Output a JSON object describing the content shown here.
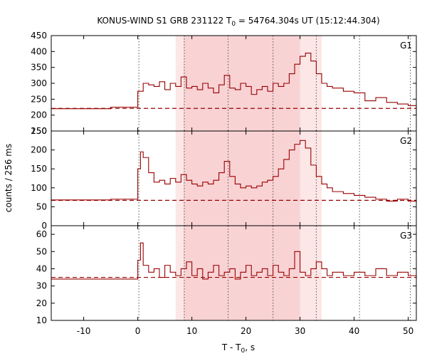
{
  "chart_data": {
    "type": "line",
    "title": "KONUS-WIND S1 GRB 231122 T",
    "title_sub": "0",
    "title_rest": " = 54764.304s UT (15:12:44.304)",
    "xlabel": "T - T",
    "xlabel_sub": "0",
    "xlabel_rest": ", s",
    "ylabel": "counts / 256 ms",
    "xlim": [
      -16,
      51.5
    ],
    "xticks": [
      -10,
      0,
      10,
      20,
      30,
      40,
      50
    ],
    "colors": {
      "line": "#990000",
      "band_light": "#fde6e6",
      "band_dark": "#f9d2d4"
    },
    "shading": [
      {
        "x0": 7,
        "x1": 34,
        "shade": "light"
      },
      {
        "x0": 8.5,
        "x1": 30,
        "shade": "dark"
      }
    ],
    "vlines": [
      0.2,
      8.6,
      16.7,
      25,
      33,
      41,
      50.4
    ],
    "panels": [
      {
        "name": "G1",
        "ylim": [
          150,
          450
        ],
        "yticks": [
          150,
          200,
          250,
          300,
          350,
          400,
          450
        ],
        "background": 221,
        "series": {
          "x": [
            -16,
            -5,
            0,
            1,
            2,
            3,
            4,
            5,
            6,
            7,
            8,
            9,
            10,
            11,
            12,
            13,
            14,
            15,
            16,
            17,
            18,
            19,
            20,
            21,
            22,
            23,
            24,
            25,
            26,
            27,
            28,
            29,
            30,
            31,
            32,
            33,
            34,
            35,
            36,
            38,
            40,
            42,
            44,
            46,
            48,
            50,
            51.5
          ],
          "y": [
            220,
            225,
            275,
            300,
            295,
            290,
            305,
            280,
            300,
            290,
            320,
            285,
            290,
            280,
            300,
            285,
            270,
            295,
            325,
            285,
            280,
            300,
            290,
            265,
            280,
            290,
            275,
            300,
            290,
            300,
            330,
            360,
            385,
            395,
            370,
            330,
            300,
            290,
            285,
            275,
            270,
            245,
            255,
            240,
            235,
            230,
            200
          ]
        }
      },
      {
        "name": "G2",
        "ylim": [
          0,
          250
        ],
        "yticks": [
          0,
          50,
          100,
          150,
          200,
          250
        ],
        "background": 67,
        "series": {
          "x": [
            -16,
            -5,
            0,
            0.5,
            1,
            2,
            3,
            4,
            5,
            6,
            7,
            8,
            9,
            10,
            11,
            12,
            13,
            14,
            15,
            16,
            17,
            18,
            19,
            20,
            21,
            22,
            23,
            24,
            25,
            26,
            27,
            28,
            29,
            30,
            31,
            32,
            33,
            34,
            35,
            36,
            38,
            40,
            42,
            44,
            46,
            48,
            50,
            51.5
          ],
          "y": [
            68,
            70,
            150,
            195,
            180,
            140,
            115,
            120,
            110,
            125,
            115,
            135,
            120,
            110,
            105,
            115,
            110,
            120,
            140,
            170,
            130,
            110,
            100,
            105,
            100,
            105,
            115,
            120,
            130,
            150,
            175,
            200,
            215,
            225,
            205,
            160,
            130,
            110,
            100,
            90,
            85,
            80,
            75,
            70,
            65,
            70,
            65,
            60
          ]
        }
      },
      {
        "name": "G3",
        "ylim": [
          10,
          65
        ],
        "yticks": [
          10,
          20,
          30,
          40,
          50,
          60
        ],
        "background": 35,
        "series": {
          "x": [
            -16,
            -5,
            0,
            0.5,
            1,
            2,
            3,
            4,
            5,
            6,
            7,
            8,
            9,
            10,
            11,
            12,
            13,
            14,
            15,
            16,
            17,
            18,
            19,
            20,
            21,
            22,
            23,
            24,
            25,
            26,
            27,
            28,
            29,
            30,
            31,
            32,
            33,
            34,
            35,
            36,
            38,
            40,
            42,
            44,
            46,
            48,
            50,
            51.5
          ],
          "y": [
            34,
            34,
            45,
            55,
            42,
            38,
            40,
            35,
            42,
            38,
            36,
            40,
            44,
            36,
            40,
            34,
            38,
            42,
            36,
            38,
            40,
            34,
            38,
            42,
            36,
            38,
            40,
            36,
            42,
            38,
            36,
            40,
            50,
            38,
            36,
            40,
            44,
            40,
            36,
            38,
            36,
            38,
            36,
            40,
            36,
            38,
            36,
            34
          ]
        }
      }
    ]
  }
}
